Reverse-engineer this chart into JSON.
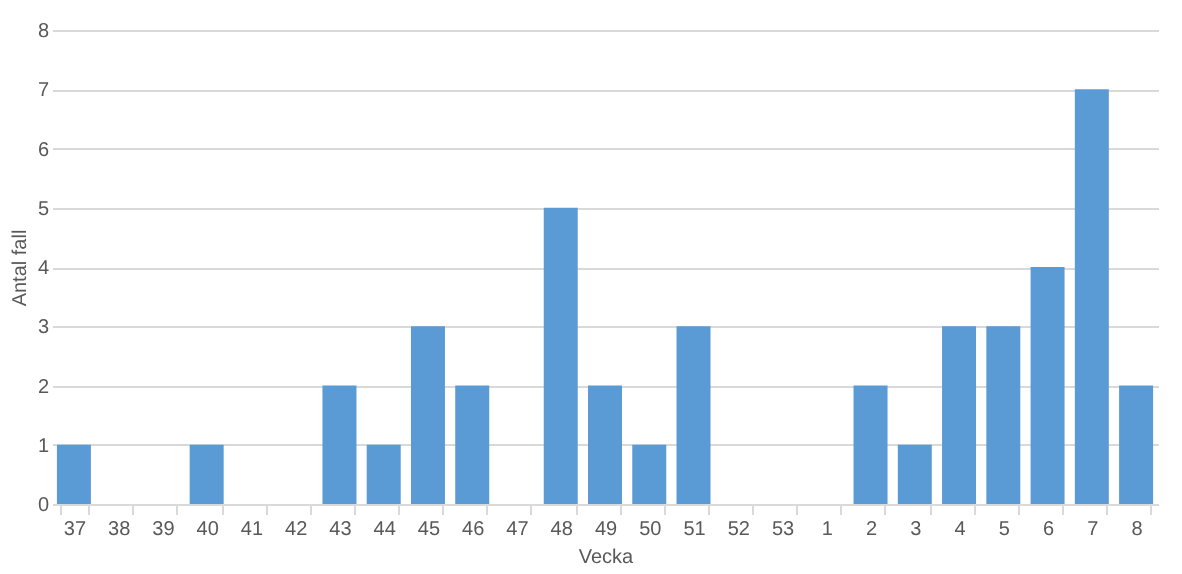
{
  "chart_data": {
    "type": "bar",
    "xlabel": "Vecka",
    "ylabel": "Antal fall",
    "categories": [
      "37",
      "38",
      "39",
      "40",
      "41",
      "42",
      "43",
      "44",
      "45",
      "46",
      "47",
      "48",
      "49",
      "50",
      "51",
      "52",
      "53",
      "1",
      "2",
      "3",
      "4",
      "5",
      "6",
      "7",
      "8"
    ],
    "values": [
      1,
      0,
      0,
      1,
      0,
      0,
      2,
      1,
      3,
      2,
      0,
      5,
      2,
      1,
      3,
      0,
      0,
      0,
      2,
      1,
      3,
      3,
      4,
      7,
      2
    ],
    "color": "#5b9bd5",
    "ylim": [
      0,
      8
    ],
    "yticks": [
      0,
      1,
      2,
      3,
      4,
      5,
      6,
      7,
      8
    ],
    "grid": "y"
  }
}
